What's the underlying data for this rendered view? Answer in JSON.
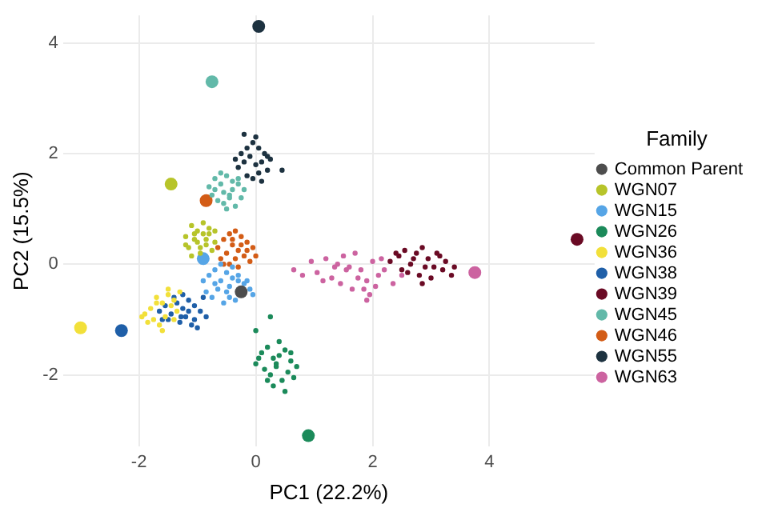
{
  "chart_data": {
    "type": "scatter",
    "xlabel": "PC1 (22.2%)",
    "ylabel": "PC2 (15.5%)",
    "legend_title": "Family",
    "legend": "right",
    "grid": true,
    "marker": "circle",
    "xlim": [
      -3.3,
      5.8
    ],
    "ylim": [
      -3.3,
      4.5
    ],
    "xticks": [
      -2,
      0,
      2,
      4
    ],
    "yticks": [
      -2,
      0,
      2,
      4
    ],
    "series": [
      {
        "name": "Common Parent",
        "type": "bubble",
        "color": "#4d4d4d",
        "x": [
          -0.25
        ],
        "values": [
          -0.5
        ],
        "sizes": [
          1
        ]
      },
      {
        "name": "WGN07",
        "color": "#b7c42a",
        "x": [
          -1.2,
          -1.1,
          -1.0,
          -0.9,
          -0.8,
          -0.7,
          -1.15,
          -1.05,
          -0.95,
          -0.85,
          -0.75,
          -1.0,
          -0.9,
          -1.1,
          -0.8,
          -0.95,
          -1.2,
          -0.7,
          -0.85,
          -1.05
        ],
        "values": [
          0.5,
          0.7,
          0.6,
          0.75,
          0.55,
          0.4,
          0.3,
          0.45,
          0.2,
          0.35,
          0.25,
          0.4,
          0.55,
          0.15,
          0.65,
          0.3,
          0.35,
          0.6,
          0.45,
          0.55
        ]
      },
      {
        "name": "WGN15",
        "color": "#56a5e6",
        "x": [
          -0.9,
          -0.8,
          -0.7,
          -0.6,
          -0.5,
          -0.4,
          -0.3,
          -0.2,
          -0.1,
          -0.85,
          -0.65,
          -0.45,
          -0.05,
          -0.75,
          -0.55,
          -0.35,
          -0.15,
          -0.6,
          -0.4,
          -0.5,
          -0.7,
          -0.3,
          -0.45
        ],
        "values": [
          -0.3,
          -0.2,
          -0.1,
          0.0,
          -0.15,
          -0.05,
          -0.2,
          -0.35,
          -0.45,
          -0.5,
          -0.45,
          -0.4,
          -0.55,
          -0.6,
          -0.7,
          -0.65,
          -0.3,
          -0.3,
          -0.25,
          -0.5,
          -0.35,
          -0.3,
          -0.6
        ]
      },
      {
        "name": "WGN26",
        "color": "#1b8a5a",
        "x": [
          0.0,
          0.1,
          0.2,
          0.3,
          0.4,
          0.5,
          0.6,
          0.7,
          0.15,
          0.35,
          0.55,
          0.25,
          0.45,
          0.65,
          0.05,
          0.3,
          0.5,
          0.4,
          0.6,
          0.2,
          0.35,
          0.25,
          0.0
        ],
        "values": [
          -1.8,
          -1.6,
          -1.5,
          -1.7,
          -1.65,
          -1.55,
          -1.75,
          -1.85,
          -1.9,
          -1.8,
          -1.95,
          -2.0,
          -2.1,
          -2.05,
          -1.7,
          -2.2,
          -2.3,
          -1.4,
          -1.6,
          -2.1,
          -1.85,
          -0.95,
          -1.2
        ]
      },
      {
        "name": "WGN36",
        "color": "#f2e03a",
        "x": [
          -1.9,
          -1.8,
          -1.7,
          -1.6,
          -1.5,
          -1.4,
          -1.3,
          -1.75,
          -1.65,
          -1.55,
          -1.45,
          -1.35,
          -1.85,
          -1.6,
          -1.5,
          -1.7,
          -1.4,
          -1.95
        ],
        "values": [
          -0.9,
          -0.8,
          -0.6,
          -0.7,
          -0.55,
          -0.65,
          -0.5,
          -1.0,
          -1.1,
          -0.95,
          -0.75,
          -0.85,
          -1.05,
          -1.2,
          -0.45,
          -0.7,
          -1.0,
          -0.95
        ]
      },
      {
        "name": "WGN38",
        "color": "#1f5fa8",
        "x": [
          -1.65,
          -1.55,
          -1.45,
          -1.35,
          -1.25,
          -1.15,
          -1.05,
          -0.95,
          -0.85,
          -1.5,
          -1.3,
          -1.1,
          -0.9,
          -1.4,
          -1.2,
          -1.0,
          -1.6,
          -1.25,
          -1.05,
          -1.28,
          -1.15
        ],
        "values": [
          -0.85,
          -0.75,
          -0.9,
          -0.7,
          -0.8,
          -0.65,
          -0.75,
          -0.85,
          -0.95,
          -1.0,
          -1.05,
          -1.1,
          -0.6,
          -0.6,
          -0.95,
          -1.15,
          -1.0,
          -0.55,
          -1.0,
          -0.95,
          -0.85
        ]
      },
      {
        "name": "WGN39",
        "color": "#6a0a24",
        "x": [
          2.3,
          2.45,
          2.55,
          2.65,
          2.75,
          2.85,
          2.95,
          3.05,
          3.15,
          3.25,
          3.4,
          2.6,
          2.8,
          3.0,
          3.2,
          2.7,
          2.9,
          3.1,
          2.5,
          3.35,
          2.85,
          2.4
        ],
        "values": [
          0.05,
          0.15,
          0.25,
          0.0,
          0.2,
          0.3,
          0.1,
          -0.05,
          0.15,
          0.05,
          -0.05,
          -0.15,
          -0.2,
          -0.25,
          -0.1,
          0.1,
          -0.05,
          0.2,
          -0.1,
          -0.2,
          -0.35,
          0.2
        ]
      },
      {
        "name": "WGN45",
        "color": "#62b9a9",
        "x": [
          -0.8,
          -0.7,
          -0.6,
          -0.5,
          -0.4,
          -0.3,
          -0.2,
          -0.75,
          -0.65,
          -0.55,
          -0.45,
          -0.35,
          -0.25,
          -0.6,
          -0.5,
          -0.4,
          -0.7,
          -0.3,
          -0.45,
          -0.55
        ],
        "values": [
          1.4,
          1.55,
          1.65,
          1.6,
          1.5,
          1.45,
          1.35,
          1.25,
          1.15,
          1.3,
          1.2,
          1.05,
          1.2,
          1.45,
          1.0,
          1.35,
          1.35,
          1.55,
          1.25,
          1.1
        ]
      },
      {
        "name": "WGN46",
        "color": "#d35c16",
        "x": [
          -0.65,
          -0.55,
          -0.45,
          -0.35,
          -0.25,
          -0.15,
          -0.05,
          0.0,
          -0.6,
          -0.5,
          -0.4,
          -0.3,
          -0.2,
          -0.1,
          -0.45,
          -0.35,
          -0.25,
          -0.55,
          -0.15,
          -0.4,
          -0.3
        ],
        "values": [
          0.3,
          0.45,
          0.55,
          0.6,
          0.5,
          0.4,
          0.3,
          0.15,
          0.1,
          0.2,
          0.35,
          0.25,
          0.15,
          0.05,
          0.0,
          0.1,
          0.35,
          0.0,
          0.25,
          0.45,
          -0.05
        ]
      },
      {
        "name": "WGN55",
        "color": "#1d3240",
        "x": [
          -0.35,
          -0.25,
          -0.15,
          -0.05,
          0.05,
          0.15,
          0.25,
          -0.3,
          -0.2,
          -0.1,
          0.0,
          0.1,
          0.2,
          -0.15,
          0.05,
          0.0,
          -0.2,
          0.1,
          0.45,
          -0.05,
          0.2
        ],
        "values": [
          1.9,
          2.0,
          2.1,
          2.2,
          2.1,
          2.0,
          1.9,
          1.75,
          1.85,
          1.95,
          1.8,
          1.85,
          1.7,
          1.6,
          1.65,
          2.3,
          2.35,
          1.5,
          1.7,
          1.55,
          1.95
        ]
      },
      {
        "name": "WGN63",
        "color": "#cc63a0",
        "x": [
          0.65,
          0.8,
          0.95,
          1.05,
          1.2,
          1.3,
          1.4,
          1.5,
          1.6,
          1.7,
          1.8,
          1.9,
          2.0,
          2.1,
          2.2,
          2.35,
          1.45,
          1.65,
          1.85,
          2.05,
          1.75,
          1.55,
          1.95,
          1.35,
          2.5,
          1.15,
          1.9,
          2.15
        ],
        "values": [
          -0.1,
          -0.2,
          0.05,
          -0.15,
          0.1,
          -0.25,
          0.0,
          0.15,
          -0.05,
          0.2,
          -0.1,
          -0.3,
          0.05,
          -0.2,
          -0.1,
          -0.35,
          -0.35,
          -0.45,
          -0.45,
          -0.4,
          -0.25,
          -0.1,
          -0.55,
          -0.05,
          -0.2,
          -0.3,
          -0.65,
          0.1
        ]
      },
      {
        "type": "bubble",
        "colors": [
          "#b7c42a",
          "#56a5e6",
          "#1b8a5a",
          "#f2e03a",
          "#1f5fa8",
          "#6a0a24",
          "#62b9a9",
          "#d35c16",
          "#1d3240",
          "#cc63a0"
        ],
        "x": [
          -1.45,
          -0.9,
          0.9,
          -3.0,
          -2.3,
          5.5,
          -0.75,
          -0.85,
          0.05,
          3.75
        ],
        "values": [
          1.45,
          0.1,
          -3.1,
          -1.15,
          -1.2,
          0.45,
          3.3,
          1.15,
          4.3,
          -0.15
        ],
        "sizes": [
          1,
          1,
          1,
          1,
          1,
          1,
          1,
          1,
          1,
          1
        ]
      }
    ]
  }
}
